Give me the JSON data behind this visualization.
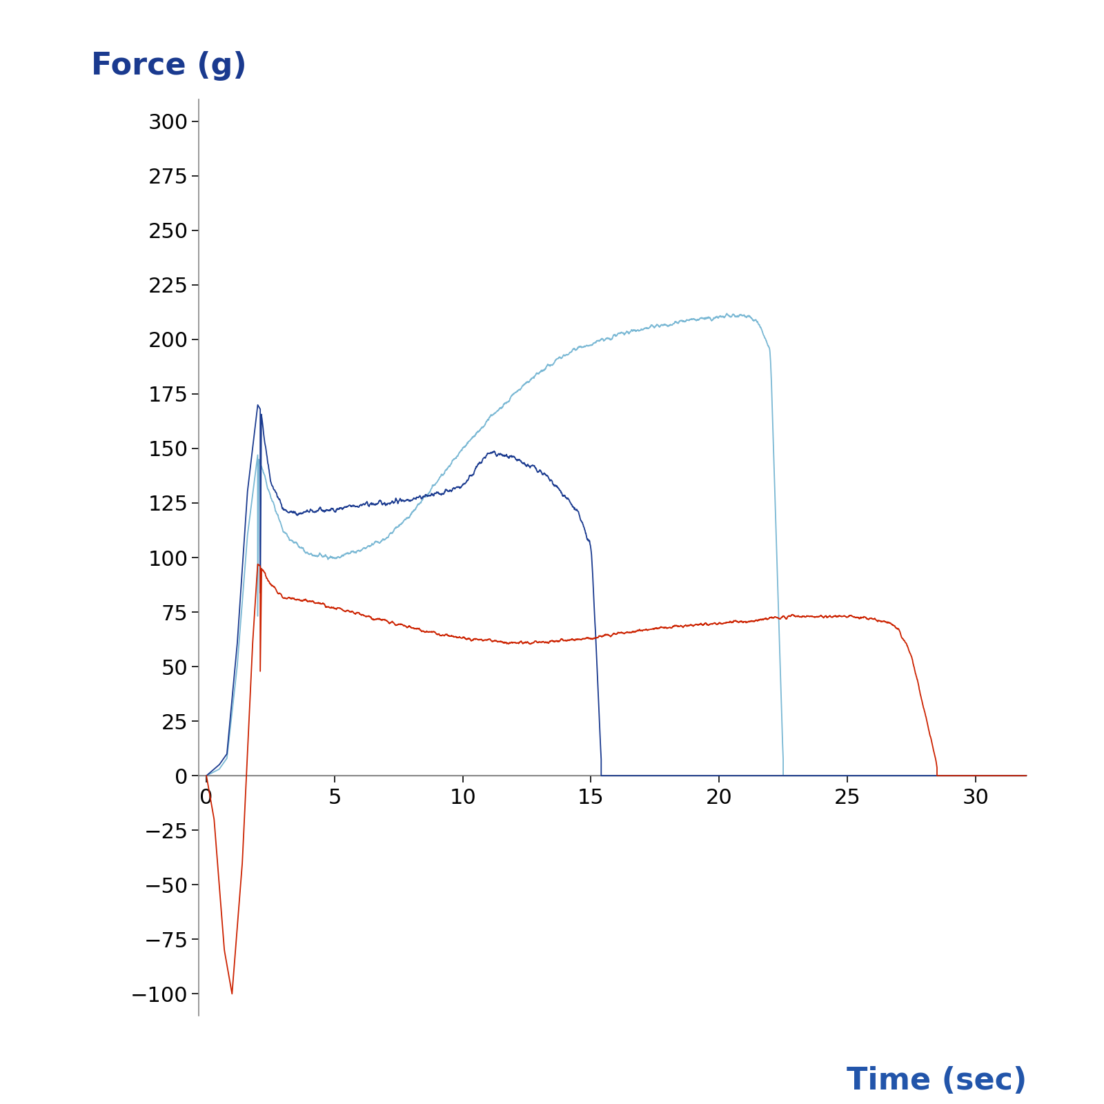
{
  "ylabel": "Force (g)",
  "xlabel": "Time (sec)",
  "ylabel_color": "#1a3a8f",
  "xlabel_color": "#2255aa",
  "ylabel_fontsize": 32,
  "xlabel_fontsize": 32,
  "tick_fontsize": 22,
  "ylim": [
    -110,
    310
  ],
  "xlim": [
    -0.3,
    32
  ],
  "yticks": [
    -100,
    -75,
    -50,
    -25,
    0,
    25,
    50,
    75,
    100,
    125,
    150,
    175,
    200,
    225,
    250,
    275,
    300
  ],
  "xticks": [
    0,
    5,
    10,
    15,
    20,
    25,
    30
  ],
  "line1_color": "#1a3a8f",
  "line2_color": "#7ab8d4",
  "line3_color": "#cc2200",
  "background_color": "#ffffff",
  "zero_line_color": "#777777",
  "spine_color": "#888888"
}
